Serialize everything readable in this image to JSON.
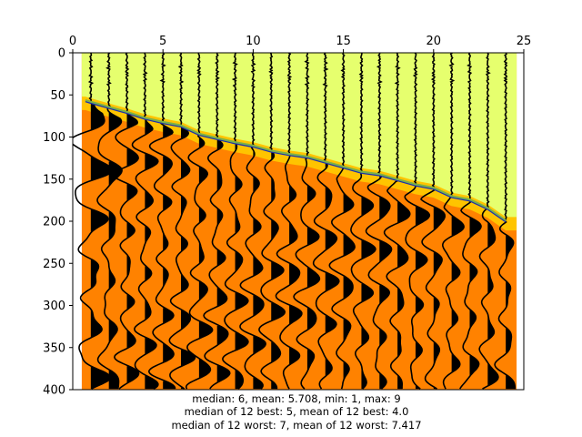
{
  "chart_data": {
    "type": "heatmap",
    "description_of_marks": "seismic wiggle traces with variable-area black fill over a two-zone color map, with a picked first-arrival line",
    "x_axis": {
      "position": "top",
      "lim": [
        0,
        25
      ],
      "ticks": [
        0,
        5,
        10,
        15,
        20,
        25
      ]
    },
    "y_axis": {
      "inverted": true,
      "lim": [
        0,
        400
      ],
      "ticks": [
        0,
        50,
        100,
        150,
        200,
        250,
        300,
        350,
        400
      ]
    },
    "colors": {
      "above_pick": "#e6ff6e",
      "below_pick": "#ff8200",
      "transition": "#ffc400",
      "trace": "#000000",
      "pick_line": "#1a2eb0",
      "pick_line_under": "#7ab04a"
    },
    "trace_positions": [
      1,
      2,
      3,
      4,
      5,
      6,
      7,
      8,
      9,
      10,
      11,
      12,
      13,
      14,
      15,
      16,
      17,
      18,
      19,
      20,
      21,
      22,
      23,
      24
    ],
    "first_arrival_pick": {
      "x": [
        0.7,
        1,
        2,
        3,
        4,
        5,
        6,
        7,
        8,
        9,
        10,
        11,
        12,
        13,
        14,
        15,
        16,
        17,
        18,
        19,
        20,
        21,
        22,
        23,
        24
      ],
      "y": [
        58,
        60,
        66,
        72,
        79,
        84,
        88,
        98,
        103,
        108,
        112,
        118,
        122,
        125,
        131,
        137,
        143,
        146,
        152,
        158,
        162,
        172,
        176,
        186,
        201
      ]
    },
    "annotations": [
      "median: 6,   mean: 5.708,   min: 1,   max: 9",
      "median of 12 best: 5,   mean of 12 best: 4.0",
      "median of 12 worst: 7,    mean of 12 worst: 7.417"
    ]
  }
}
